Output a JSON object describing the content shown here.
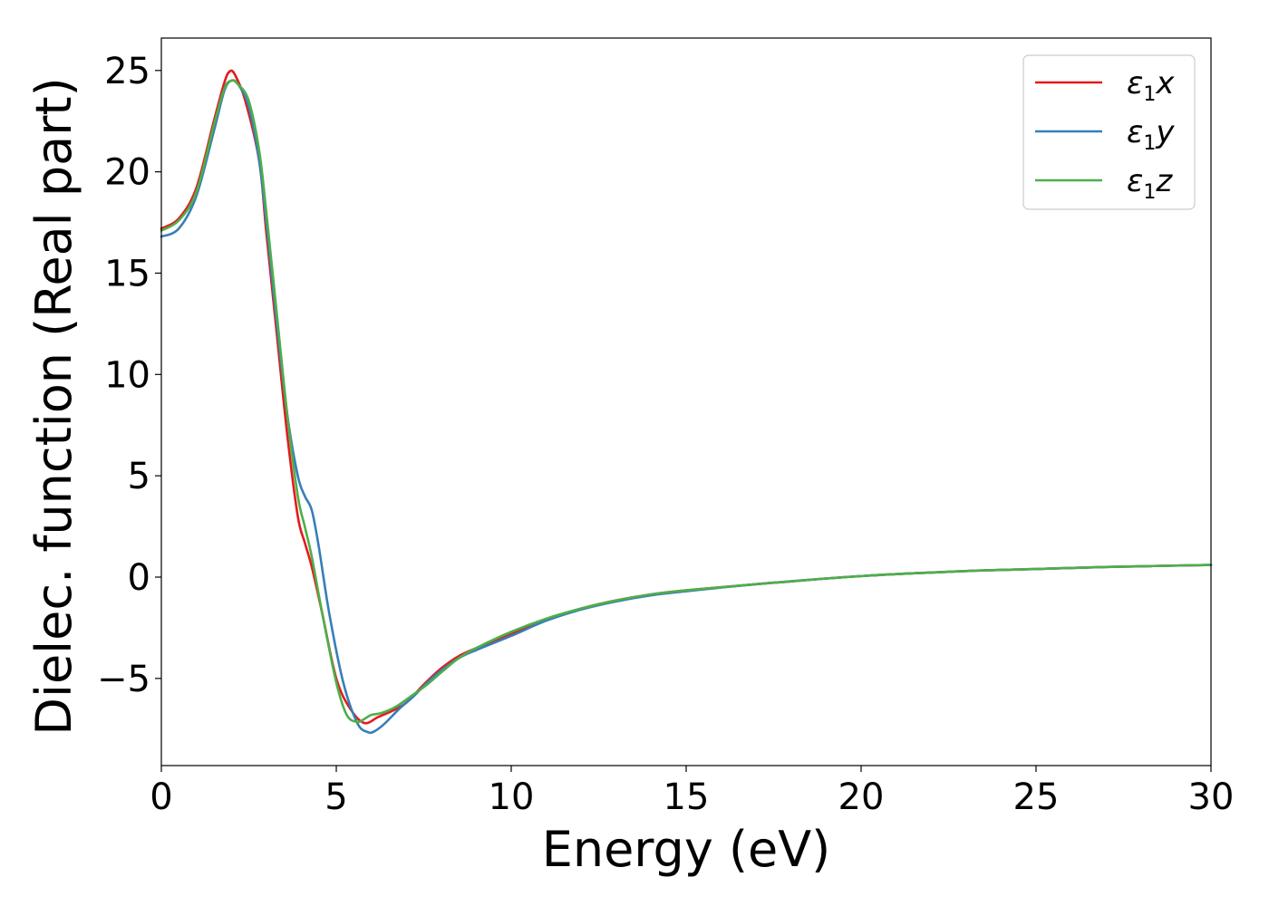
{
  "chart_data": {
    "type": "line",
    "xlabel": "Energy (eV)",
    "ylabel": "Dielec. function (Real part)",
    "xlim": [
      0,
      30
    ],
    "ylim": [
      -9.3,
      26.6
    ],
    "xticks": [
      0,
      5,
      10,
      15,
      20,
      25,
      30
    ],
    "xtick_labels": [
      "0",
      "5",
      "10",
      "15",
      "20",
      "25",
      "30"
    ],
    "yticks": [
      -5,
      0,
      5,
      10,
      15,
      20,
      25
    ],
    "ytick_labels": [
      "−5",
      "0",
      "5",
      "10",
      "15",
      "20",
      "25"
    ],
    "grid": false,
    "legend_position": "top-right",
    "series": [
      {
        "name": "ε1x",
        "legend_symbol": "ε",
        "legend_sub": "1",
        "legend_var": "x",
        "color": "#e41a1c",
        "x": [
          0,
          0.5,
          1.0,
          1.5,
          1.8,
          1.95,
          2.1,
          2.4,
          2.8,
          3.0,
          3.3,
          3.6,
          3.9,
          4.1,
          4.3,
          4.6,
          5.0,
          5.4,
          5.8,
          6.2,
          6.6,
          7.0,
          7.5,
          8.0,
          8.5,
          9.0,
          10,
          11,
          12,
          13,
          14,
          15,
          17,
          20,
          23,
          25,
          27,
          30
        ],
        "y": [
          17.2,
          17.7,
          19.2,
          22.5,
          24.4,
          24.95,
          24.8,
          23.5,
          20.5,
          17.0,
          12.0,
          7.0,
          3.0,
          1.7,
          0.5,
          -1.8,
          -5.0,
          -6.5,
          -7.2,
          -6.9,
          -6.6,
          -6.2,
          -5.3,
          -4.5,
          -3.9,
          -3.5,
          -2.8,
          -2.1,
          -1.55,
          -1.15,
          -0.85,
          -0.65,
          -0.35,
          0.05,
          0.3,
          0.4,
          0.5,
          0.6
        ]
      },
      {
        "name": "ε1y",
        "legend_symbol": "ε",
        "legend_sub": "1",
        "legend_var": "y",
        "color": "#377eb8",
        "x": [
          0,
          0.5,
          1.0,
          1.5,
          1.8,
          2.0,
          2.2,
          2.5,
          2.8,
          3.0,
          3.3,
          3.6,
          3.9,
          4.1,
          4.3,
          4.5,
          4.8,
          5.2,
          5.6,
          5.9,
          6.1,
          6.4,
          6.8,
          7.2,
          7.6,
          8.0,
          8.5,
          9.0,
          10,
          11,
          12,
          13,
          14,
          15,
          17,
          20,
          23,
          25,
          27,
          30
        ],
        "y": [
          16.8,
          17.2,
          18.8,
          22.0,
          24.0,
          24.5,
          24.3,
          23.2,
          20.5,
          17.5,
          12.5,
          8.0,
          5.0,
          4.0,
          3.3,
          1.5,
          -1.8,
          -5.2,
          -7.2,
          -7.65,
          -7.6,
          -7.2,
          -6.5,
          -5.9,
          -5.2,
          -4.6,
          -4.0,
          -3.6,
          -2.9,
          -2.15,
          -1.6,
          -1.2,
          -0.9,
          -0.7,
          -0.35,
          0.05,
          0.3,
          0.4,
          0.5,
          0.6
        ]
      },
      {
        "name": "ε1z",
        "legend_symbol": "ε",
        "legend_sub": "1",
        "legend_var": "z",
        "color": "#4daf4a",
        "x": [
          0,
          0.5,
          1.0,
          1.5,
          1.8,
          2.0,
          2.2,
          2.5,
          2.8,
          3.0,
          3.3,
          3.6,
          3.9,
          4.1,
          4.3,
          4.6,
          5.0,
          5.3,
          5.6,
          5.8,
          6.0,
          6.3,
          6.7,
          7.2,
          7.6,
          8.0,
          8.5,
          9.0,
          10,
          11,
          12,
          13,
          14,
          15,
          17,
          20,
          23,
          25,
          27,
          30
        ],
        "y": [
          17.1,
          17.6,
          19.0,
          22.3,
          24.1,
          24.5,
          24.3,
          23.5,
          21.0,
          18.0,
          13.0,
          8.0,
          4.0,
          2.5,
          1.0,
          -1.8,
          -5.2,
          -6.8,
          -7.15,
          -7.0,
          -6.8,
          -6.7,
          -6.4,
          -5.8,
          -5.3,
          -4.7,
          -4.0,
          -3.5,
          -2.7,
          -2.05,
          -1.55,
          -1.15,
          -0.85,
          -0.65,
          -0.35,
          0.05,
          0.3,
          0.4,
          0.5,
          0.6
        ]
      }
    ]
  }
}
